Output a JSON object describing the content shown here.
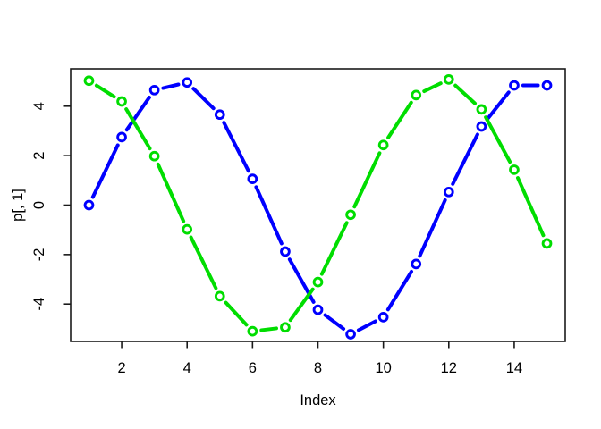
{
  "chart_data": {
    "type": "line",
    "line_type": "b",
    "marker": "open-circle",
    "title": "",
    "xlabel": "Index",
    "ylabel": "p[, 1]",
    "x": [
      1,
      2,
      3,
      4,
      5,
      6,
      7,
      8,
      9,
      10,
      11,
      12,
      13,
      14,
      15
    ],
    "series": [
      {
        "name": "blue-series",
        "color": "#0000ff",
        "values": [
          0.0,
          2.75,
          4.65,
          4.96,
          3.66,
          1.06,
          -1.88,
          -4.23,
          -5.22,
          -4.53,
          -2.38,
          0.53,
          3.18,
          4.84,
          4.84
        ]
      },
      {
        "name": "green-series",
        "color": "#00dd00",
        "values": [
          5.03,
          4.19,
          1.98,
          -0.98,
          -3.68,
          -5.1,
          -4.94,
          -3.11,
          -0.39,
          2.43,
          4.45,
          5.08,
          3.87,
          1.43,
          -1.55
        ]
      }
    ],
    "x_ticks": [
      2,
      4,
      6,
      8,
      10,
      12,
      14
    ],
    "x_tick_labels": [
      "2",
      "4",
      "6",
      "8",
      "10",
      "12",
      "14"
    ],
    "y_ticks": [
      -4,
      -2,
      0,
      2,
      4
    ],
    "y_tick_labels": [
      "-4",
      "-2",
      "0",
      "2",
      "4"
    ],
    "xlim": [
      0.44,
      15.56
    ],
    "ylim": [
      -5.51,
      5.51
    ],
    "grid": false,
    "legend": "none",
    "background": "#ffffff",
    "frame_color": "#1a1a1a",
    "text_color": "#000000"
  }
}
